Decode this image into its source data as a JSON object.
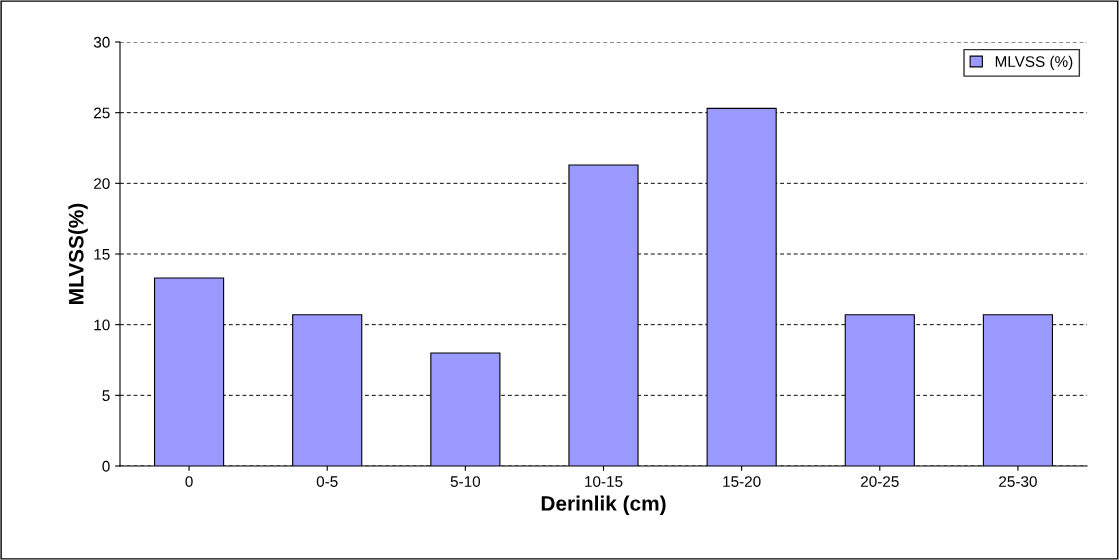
{
  "chart_data": {
    "type": "bar",
    "xlabel": "Derinlik (cm)",
    "ylabel": "MLVSS(%)",
    "categories": [
      "0",
      "0-5",
      "5-10",
      "10-15",
      "15-20",
      "20-25",
      "25-30"
    ],
    "series": [
      {
        "name": "MLVSS (%)",
        "color": "#9999ff",
        "values": [
          13.3,
          10.7,
          8.0,
          21.3,
          25.3,
          10.7,
          10.7
        ]
      }
    ],
    "ylim": [
      0,
      30
    ],
    "yticks": [
      0,
      5,
      10,
      15,
      20,
      25,
      30
    ],
    "grid": "y",
    "legend": "top right"
  }
}
